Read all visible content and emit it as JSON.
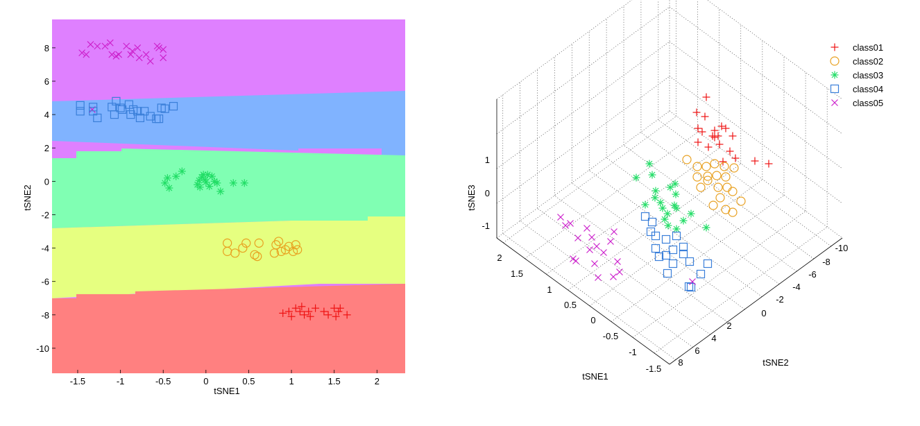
{
  "chart_data": [
    {
      "type": "scatter",
      "title": "",
      "xlabel": "tSNE1",
      "ylabel": "tSNE2",
      "xlim": [
        -1.8,
        2.33
      ],
      "ylim": [
        -11.5,
        9.7
      ],
      "xticks": [
        -1.5,
        -1,
        -0.5,
        0,
        0.5,
        1,
        1.5,
        2
      ],
      "xtick_labels": [
        "-1.5",
        "-1",
        "-0.5",
        "0",
        "0.5",
        "1",
        "1.5",
        "2"
      ],
      "yticks": [
        8,
        6,
        4,
        2,
        0,
        -2,
        -4,
        -6,
        -8,
        -10
      ],
      "ytick_labels": [
        "8",
        "6",
        "4",
        "2",
        "0",
        "-2",
        "-4",
        "-6",
        "-8",
        "-10"
      ],
      "background": "decision regions",
      "regions": [
        {
          "class": "class05",
          "color": "#df80ff"
        },
        {
          "class": "class04",
          "color": "#80b3ff"
        },
        {
          "class": "class03",
          "color": "#80ffb3"
        },
        {
          "class": "class02",
          "color": "#e6ff80"
        },
        {
          "class": "class01",
          "color": "#ff8080"
        }
      ],
      "series": [
        {
          "name": "class05",
          "marker": "x",
          "color": "#cc22cc",
          "points": [
            [
              -1.45,
              7.7
            ],
            [
              -1.4,
              7.6
            ],
            [
              -1.35,
              8.2
            ],
            [
              -1.27,
              8.1
            ],
            [
              -1.18,
              8.1
            ],
            [
              -1.12,
              8.3
            ],
            [
              -1.1,
              7.6
            ],
            [
              -1.05,
              7.5
            ],
            [
              -1.02,
              7.6
            ],
            [
              -0.93,
              8.1
            ],
            [
              -0.88,
              7.6
            ],
            [
              -0.86,
              7.8
            ],
            [
              -0.8,
              8.0
            ],
            [
              -0.78,
              7.4
            ],
            [
              -0.7,
              7.6
            ],
            [
              -0.65,
              7.2
            ],
            [
              -0.57,
              8.1
            ],
            [
              -0.55,
              8.0
            ],
            [
              -0.5,
              7.9
            ],
            [
              -0.5,
              7.4
            ],
            [
              -1.33,
              4.3
            ]
          ]
        },
        {
          "name": "class04",
          "marker": "square",
          "color": "#3a7fd9",
          "points": [
            [
              -1.47,
              4.55
            ],
            [
              -1.47,
              4.2
            ],
            [
              -1.32,
              4.45
            ],
            [
              -1.32,
              4.2
            ],
            [
              -1.27,
              3.8
            ],
            [
              -1.1,
              4.45
            ],
            [
              -1.07,
              4.0
            ],
            [
              -1.05,
              4.8
            ],
            [
              -1.0,
              4.4
            ],
            [
              -0.98,
              4.3
            ],
            [
              -0.9,
              4.6
            ],
            [
              -0.88,
              4.0
            ],
            [
              -0.85,
              4.3
            ],
            [
              -0.8,
              4.2
            ],
            [
              -0.77,
              3.8
            ],
            [
              -0.72,
              4.2
            ],
            [
              -0.65,
              3.9
            ],
            [
              -0.58,
              3.75
            ],
            [
              -0.55,
              3.75
            ],
            [
              -0.52,
              4.4
            ],
            [
              -0.48,
              4.35
            ],
            [
              -0.38,
              4.5
            ]
          ]
        },
        {
          "name": "class03",
          "marker": "asterisk",
          "color": "#22dd66",
          "points": [
            [
              -0.48,
              -0.1
            ],
            [
              -0.45,
              0.2
            ],
            [
              -0.43,
              -0.4
            ],
            [
              -0.35,
              0.3
            ],
            [
              -0.28,
              0.6
            ],
            [
              -0.1,
              -0.2
            ],
            [
              -0.08,
              0.05
            ],
            [
              -0.07,
              -0.35
            ],
            [
              -0.05,
              0.25
            ],
            [
              -0.03,
              0.4
            ],
            [
              -0.01,
              0.1
            ],
            [
              0.0,
              -0.05
            ],
            [
              0.02,
              0.4
            ],
            [
              0.04,
              -0.3
            ],
            [
              0.07,
              0.3
            ],
            [
              0.1,
              0.0
            ],
            [
              0.13,
              -0.1
            ],
            [
              0.17,
              -0.6
            ],
            [
              0.32,
              -0.1
            ],
            [
              0.45,
              -0.1
            ]
          ]
        },
        {
          "name": "class02",
          "marker": "circle",
          "color": "#e8a020",
          "points": [
            [
              0.25,
              -3.7
            ],
            [
              0.25,
              -4.2
            ],
            [
              0.34,
              -4.3
            ],
            [
              0.43,
              -4.0
            ],
            [
              0.47,
              -3.7
            ],
            [
              0.57,
              -4.4
            ],
            [
              0.6,
              -4.5
            ],
            [
              0.62,
              -3.7
            ],
            [
              0.8,
              -4.3
            ],
            [
              0.82,
              -3.8
            ],
            [
              0.85,
              -3.6
            ],
            [
              0.88,
              -4.2
            ],
            [
              0.93,
              -4.1
            ],
            [
              0.97,
              -3.9
            ],
            [
              1.02,
              -4.2
            ],
            [
              1.05,
              -3.8
            ],
            [
              1.07,
              -4.1
            ]
          ]
        },
        {
          "name": "class01",
          "marker": "plus",
          "color": "#ee1111",
          "points": [
            [
              0.9,
              -7.9
            ],
            [
              0.97,
              -7.8
            ],
            [
              1.0,
              -8.1
            ],
            [
              1.05,
              -7.6
            ],
            [
              1.1,
              -7.8
            ],
            [
              1.12,
              -7.5
            ],
            [
              1.15,
              -8.0
            ],
            [
              1.2,
              -7.8
            ],
            [
              1.22,
              -8.1
            ],
            [
              1.28,
              -7.6
            ],
            [
              1.38,
              -7.8
            ],
            [
              1.43,
              -8.0
            ],
            [
              1.5,
              -7.6
            ],
            [
              1.52,
              -8.1
            ],
            [
              1.55,
              -7.8
            ],
            [
              1.57,
              -7.6
            ],
            [
              1.65,
              -8.0
            ]
          ]
        }
      ]
    },
    {
      "type": "scatter3d",
      "title": "",
      "xlabel": "tSNE1",
      "ylabel": "tSNE2",
      "zlabel": "tSNE3",
      "xticks": [
        2,
        1.5,
        1,
        0.5,
        0,
        -0.5,
        -1,
        -1.5
      ],
      "xtick_labels": [
        "2",
        "1.5",
        "1",
        "0.5",
        "0",
        "-0.5",
        "-1",
        "-1.5"
      ],
      "yticks": [
        8,
        6,
        4,
        2,
        0,
        -2,
        -4,
        -6,
        -8,
        -10
      ],
      "ytick_labels": [
        "8",
        "6",
        "4",
        "2",
        "0",
        "-2",
        "-4",
        "-6",
        "-8",
        "-10"
      ],
      "zticks": [
        1,
        0,
        -1
      ],
      "ztick_labels": [
        "1",
        "0",
        "-1"
      ],
      "legend": {
        "position": "top-right",
        "entries": [
          {
            "label": "class01",
            "marker": "plus",
            "color": "#ee1111"
          },
          {
            "label": "class02",
            "marker": "circle",
            "color": "#e8a020"
          },
          {
            "label": "class03",
            "marker": "asterisk",
            "color": "#22dd66"
          },
          {
            "label": "class04",
            "marker": "square",
            "color": "#3a7fd9"
          },
          {
            "label": "class05",
            "marker": "x",
            "color": "#cc22cc"
          }
        ]
      }
    }
  ]
}
